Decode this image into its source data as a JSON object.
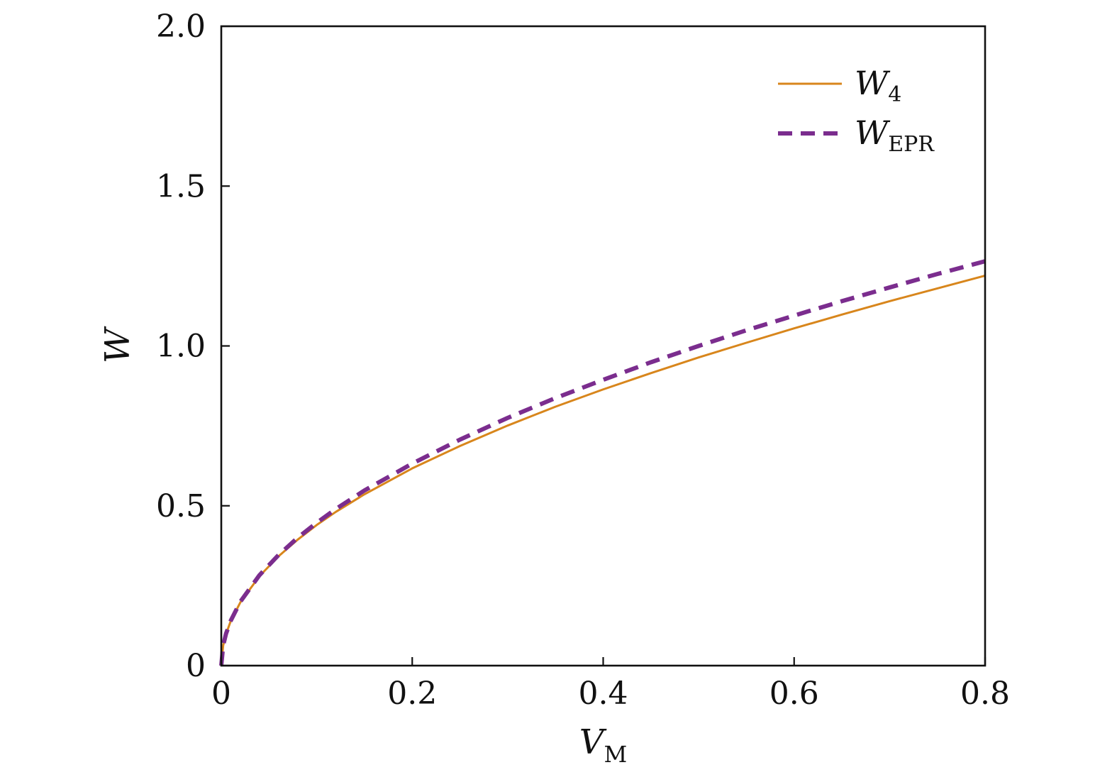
{
  "chart_data": {
    "type": "line",
    "xlabel": "V",
    "xlabel_sub": "M",
    "ylabel": "W",
    "xlim": [
      0,
      0.8
    ],
    "ylim": [
      0,
      2.0
    ],
    "x_ticks": [
      0,
      0.2,
      0.4,
      0.6,
      0.8
    ],
    "x_tick_labels": [
      "0",
      "0.2",
      "0.4",
      "0.6",
      "0.8"
    ],
    "y_ticks": [
      0,
      0.5,
      1.0,
      1.5,
      2.0
    ],
    "y_tick_labels": [
      "0",
      "0.5",
      "1.0",
      "1.5",
      "2.0"
    ],
    "grid": false,
    "legend_position": "top-right",
    "series": [
      {
        "name": "W",
        "name_sub": "4",
        "style": "solid",
        "color": "#d8861c",
        "x": [
          0,
          0.002,
          0.005,
          0.01,
          0.02,
          0.04,
          0.06,
          0.08,
          0.1,
          0.12,
          0.15,
          0.2,
          0.25,
          0.3,
          0.35,
          0.4,
          0.45,
          0.5,
          0.55,
          0.6,
          0.65,
          0.7,
          0.75,
          0.8
        ],
        "values": [
          0,
          0.063,
          0.099,
          0.14,
          0.198,
          0.28,
          0.342,
          0.394,
          0.44,
          0.481,
          0.536,
          0.617,
          0.687,
          0.751,
          0.81,
          0.864,
          0.915,
          0.964,
          1.01,
          1.055,
          1.098,
          1.14,
          1.18,
          1.22
        ]
      },
      {
        "name": "W",
        "name_sub": "EPR",
        "style": "dashed",
        "color": "#7b2d8e",
        "x": [
          0,
          0.002,
          0.005,
          0.01,
          0.02,
          0.04,
          0.06,
          0.08,
          0.1,
          0.12,
          0.15,
          0.2,
          0.25,
          0.3,
          0.35,
          0.4,
          0.45,
          0.5,
          0.55,
          0.6,
          0.65,
          0.7,
          0.75,
          0.8
        ],
        "values": [
          0,
          0.063,
          0.1,
          0.141,
          0.2,
          0.283,
          0.346,
          0.4,
          0.447,
          0.49,
          0.548,
          0.632,
          0.707,
          0.775,
          0.837,
          0.894,
          0.949,
          1.0,
          1.049,
          1.095,
          1.14,
          1.183,
          1.225,
          1.265
        ]
      }
    ]
  }
}
